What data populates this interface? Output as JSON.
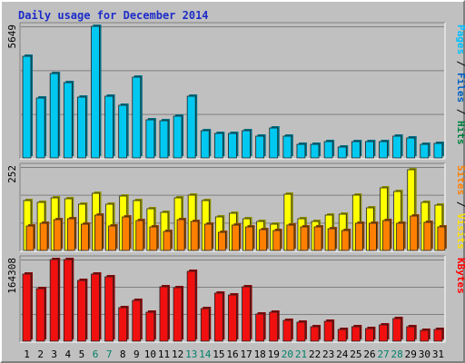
{
  "title": "Daily usage for December 2014",
  "chart_data": [
    {
      "type": "bar",
      "title": "Daily usage for December 2014",
      "categories": [
        "1",
        "2",
        "3",
        "4",
        "5",
        "6",
        "7",
        "8",
        "9",
        "10",
        "11",
        "12",
        "13",
        "14",
        "15",
        "16",
        "17",
        "18",
        "19",
        "20",
        "21",
        "22",
        "23",
        "24",
        "25",
        "26",
        "27",
        "28",
        "29",
        "30",
        "31"
      ],
      "weekend_days": [
        "6",
        "7",
        "13",
        "14",
        "20",
        "21",
        "27",
        "28"
      ],
      "ymax_label": "5649",
      "ylim": [
        0,
        5649
      ],
      "grid": true,
      "legend_right": [
        "Pages",
        " / ",
        "Files",
        " / ",
        "Hits"
      ],
      "legend_colors": [
        "#00c0ff",
        "#000000",
        "#0060c0",
        "#000000",
        "#008040"
      ],
      "series": [
        {
          "name": "Pages",
          "color": "#00c8f0",
          "values": [
            4370,
            2570,
            3630,
            3220,
            2610,
            5649,
            2650,
            2260,
            3450,
            1640,
            1600,
            1790,
            2630,
            1160,
            1070,
            1070,
            1160,
            920,
            1270,
            920,
            600,
            600,
            690,
            460,
            690,
            690,
            690,
            950,
            840,
            600,
            640
          ]
        }
      ]
    },
    {
      "type": "bar",
      "categories": [
        "1",
        "2",
        "3",
        "4",
        "5",
        "6",
        "7",
        "8",
        "9",
        "10",
        "11",
        "12",
        "13",
        "14",
        "15",
        "16",
        "17",
        "18",
        "19",
        "20",
        "21",
        "22",
        "23",
        "24",
        "25",
        "26",
        "27",
        "28",
        "29",
        "30",
        "31"
      ],
      "ymax_label": "252",
      "ylim": [
        0,
        252
      ],
      "grid": true,
      "legend_right": [
        "Sites",
        " / ",
        "Visits"
      ],
      "legend_colors": [
        "#ff8000",
        "#000000",
        "#ffe000"
      ],
      "series": [
        {
          "name": "Visits",
          "color": "#ffff00",
          "values": [
            152,
            145,
            158,
            155,
            140,
            172,
            140,
            165,
            150,
            125,
            115,
            158,
            168,
            152,
            100,
            112,
            95,
            88,
            80,
            170,
            95,
            88,
            108,
            110,
            168,
            128,
            190,
            178,
            245,
            145,
            138
          ]
        },
        {
          "name": "Sites",
          "color": "#ff8000",
          "values": [
            75,
            82,
            92,
            95,
            80,
            108,
            75,
            102,
            90,
            70,
            58,
            92,
            88,
            80,
            55,
            78,
            72,
            62,
            60,
            78,
            72,
            70,
            65,
            60,
            82,
            82,
            90,
            82,
            105,
            85,
            72
          ]
        }
      ]
    },
    {
      "type": "bar",
      "categories": [
        "1",
        "2",
        "3",
        "4",
        "5",
        "6",
        "7",
        "8",
        "9",
        "10",
        "11",
        "12",
        "13",
        "14",
        "15",
        "16",
        "17",
        "18",
        "19",
        "20",
        "21",
        "22",
        "23",
        "24",
        "25",
        "26",
        "27",
        "28",
        "29",
        "30",
        "31"
      ],
      "ymax_label": "164308",
      "ylim": [
        0,
        164308
      ],
      "grid": true,
      "legend_right": [
        "KBytes"
      ],
      "legend_colors": [
        "#ff0000"
      ],
      "series": [
        {
          "name": "KBytes",
          "color": "#f01010",
          "values": [
            136000,
            105000,
            164308,
            164308,
            123000,
            136000,
            130000,
            68000,
            83000,
            59000,
            110000,
            108000,
            140000,
            66000,
            96000,
            93000,
            110000,
            55000,
            58000,
            42000,
            38000,
            30000,
            40000,
            23000,
            30000,
            25000,
            33000,
            45000,
            30000,
            22000,
            24000
          ]
        }
      ]
    }
  ]
}
